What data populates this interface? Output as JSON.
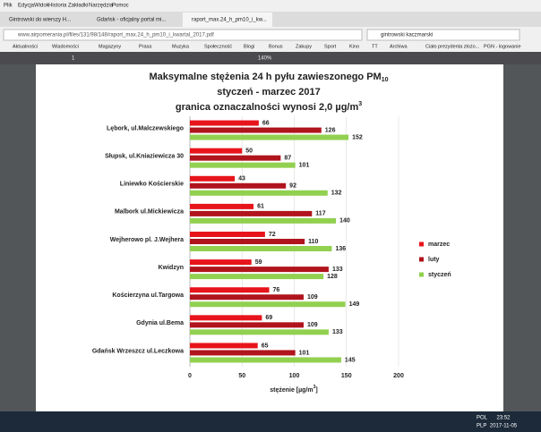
{
  "browser": {
    "menu": [
      "Plik",
      "Edycja",
      "Widok",
      "Historia",
      "Zakładki",
      "Narzędzia",
      "Pomoc"
    ],
    "tabs": [
      "Gintrowski do wierszy H...",
      "Gdańsk - oficjalny portal mi...",
      "raport_max.24_h_pm10_i_kw..."
    ],
    "url": "www.airpomerania.pl/files/131/98/148/raport_max.24_h_pm10_i_kwartal_2017.pdf",
    "search": "gintrowski kaczmarski",
    "bookmarks": [
      "Aktualności",
      "Wiadomości",
      "Magazyny",
      "Prasa",
      "Muzyka",
      "Społeczność",
      "Blogi",
      "Bonus",
      "Zakupy",
      "Sport",
      "Kino",
      "TT",
      "Archiwa",
      "Ciało prezydenta złożo...",
      "PGN - logowanie"
    ],
    "page": "1",
    "zoom": "140%",
    "taskbar": {
      "lang": "POL",
      "layout": "PLP",
      "time": "23:52",
      "date": "2017-11-05"
    }
  },
  "chart_data": {
    "type": "bar",
    "orientation": "horizontal",
    "title": {
      "line1": "Maksymalne stężenia  24 h pyłu zawieszonego PM",
      "line1_sub": "10",
      "line2": "styczeń - marzec 2017",
      "line3": "granica oznaczalności wynosi 2,0 µg/m",
      "line3_sup": "3"
    },
    "x_label": {
      "text": "stężenie [µg/m",
      "sup": "3",
      "end": "]"
    },
    "categories": [
      "Lębork, ul.Malczewskiego",
      "Słupsk, ul.Kniaziewicza 30",
      "Liniewko Kościerskie",
      "Malbork ul.Mickiewicza",
      "Wejherowo pl. J.Wejhera",
      "Kwidzyn",
      "Kościerzyna ul.Targowa",
      "Gdynia ul.Bema",
      "Gdańsk Wrzeszcz ul.Leczkowa"
    ],
    "series": [
      {
        "name": "marzec",
        "color": "#e8141b",
        "values": [
          66,
          50,
          43,
          61,
          72,
          59,
          76,
          69,
          65
        ]
      },
      {
        "name": "luty",
        "color": "#b0141c",
        "values": [
          126,
          87,
          92,
          117,
          110,
          133,
          109,
          109,
          101
        ]
      },
      {
        "name": "styczeń",
        "color": "#92d050",
        "values": [
          152,
          101,
          132,
          140,
          136,
          128,
          149,
          133,
          145
        ]
      }
    ],
    "xlim": [
      0,
      200
    ],
    "xticks": [
      0,
      50,
      100,
      150,
      200
    ],
    "grid": true,
    "legend": "right"
  }
}
